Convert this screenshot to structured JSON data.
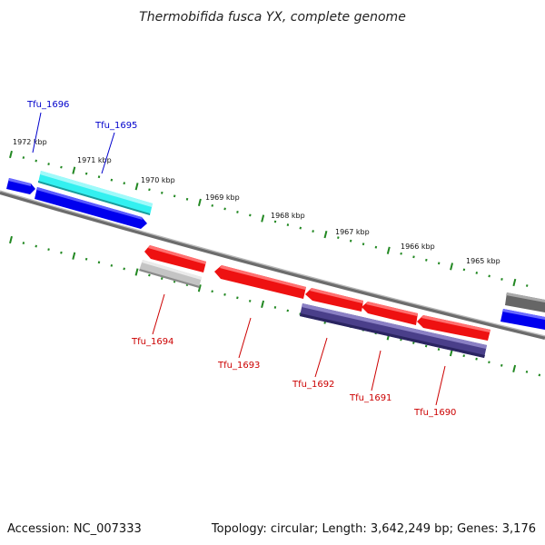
{
  "title": "Thermobifida fusca YX, complete genome",
  "footer": {
    "accession": "Accession: NC_007333",
    "summary": "Topology: circular; Length: 3,642,249 bp; Genes: 3,176"
  },
  "colors": {
    "backbone": "#888888",
    "ticks": "#228822",
    "forward_label": "#0000cc",
    "reverse_label": "#cc0000",
    "blue": "#0000ee",
    "cyan": "#22e6e6",
    "red": "#ee1111",
    "grey": "#bbbbbb",
    "darkgrey": "#666666",
    "navy": "#4a3f8a"
  },
  "scale_labels": [
    "1972 kbp",
    "1971 kbp",
    "1970 kbp",
    "1969 kbp",
    "1968 kbp",
    "1967 kbp",
    "1966 kbp",
    "1965 kbp"
  ],
  "gene_labels": {
    "tfu_1696": "Tfu_1696",
    "tfu_1695": "Tfu_1695",
    "tfu_1694": "Tfu_1694",
    "tfu_1693": "Tfu_1693",
    "tfu_1692": "Tfu_1692",
    "tfu_1691": "Tfu_1691",
    "tfu_1690": "Tfu_1690"
  },
  "genes": [
    {
      "id": "blue-left",
      "color": "blue",
      "strand": "forward"
    },
    {
      "id": "tfu_1696",
      "color": "cyan",
      "strand": "forward"
    },
    {
      "id": "tfu_1695",
      "color": "blue",
      "strand": "forward"
    },
    {
      "id": "tfu_1694",
      "color": "red",
      "strand": "reverse"
    },
    {
      "id": "tfu_1694-b",
      "color": "grey",
      "strand": "reverse"
    },
    {
      "id": "tfu_1693",
      "color": "red",
      "strand": "reverse"
    },
    {
      "id": "tfu_1692",
      "color": "red",
      "strand": "reverse"
    },
    {
      "id": "tfu_1691",
      "color": "red",
      "strand": "reverse"
    },
    {
      "id": "tfu_1690",
      "color": "red",
      "strand": "reverse"
    },
    {
      "id": "navy-block",
      "color": "navy",
      "strand": "reverse"
    },
    {
      "id": "right-grey",
      "color": "darkgrey",
      "strand": "forward"
    },
    {
      "id": "right-blue",
      "color": "blue",
      "strand": "forward"
    }
  ]
}
